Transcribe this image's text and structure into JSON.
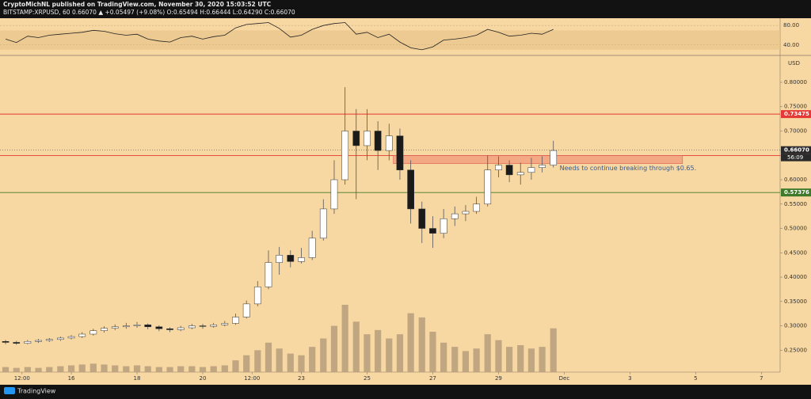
{
  "header": {
    "line1": "CryptoMichNL published on TradingView.com, November 30, 2020 15:03:52 UTC",
    "line2": "BITSTAMP:XRPUSD, 60  0.66070 ▲ +0.05497 (+9.08%) O:0.65494 H:0.66444 L:0.64290 C:0.66070"
  },
  "footer": {
    "brand": "TradingView"
  },
  "chart_data": {
    "type": "candlestick",
    "currency": "USD",
    "up_color": "#ffffff",
    "down_color": "#1a1a1a",
    "wick_color": "#555555",
    "volume_color": "#b39a7a",
    "xlim": [
      13.83,
      37.57
    ],
    "xticks": [
      {
        "value": 14.5,
        "label": "12:00"
      },
      16,
      18,
      20,
      {
        "value": 21.5,
        "label": "12:00"
      },
      23,
      25,
      27,
      29,
      {
        "value": 31,
        "label": "Dec"
      },
      {
        "value": 33,
        "label": "3"
      },
      {
        "value": 35,
        "label": "5"
      },
      {
        "value": 37,
        "label": "7"
      }
    ],
    "ylim": [
      0.205,
      0.852
    ],
    "yticks": [
      {
        "value": 0.25,
        "label": "0.25000"
      },
      {
        "value": 0.3,
        "label": "0.30000"
      },
      {
        "value": 0.35,
        "label": "0.35000"
      },
      {
        "value": 0.4,
        "label": "0.40000"
      },
      {
        "value": 0.45,
        "label": "0.45000"
      },
      {
        "value": 0.5,
        "label": "0.50000"
      },
      {
        "value": 0.55,
        "label": "0.55000"
      },
      {
        "value": 0.6,
        "label": "0.60000"
      },
      {
        "value": 0.65,
        "label": "0.65000"
      },
      {
        "value": 0.7,
        "label": "0.70000"
      },
      {
        "value": 0.75,
        "label": "0.75000"
      },
      {
        "value": 0.8,
        "label": "0.80000"
      }
    ],
    "x": [
      14,
      14.33,
      14.67,
      15,
      15.33,
      15.67,
      16,
      16.33,
      16.67,
      17,
      17.33,
      17.67,
      18,
      18.33,
      18.67,
      19,
      19.33,
      19.67,
      20,
      20.33,
      20.67,
      21,
      21.33,
      21.67,
      22,
      22.33,
      22.67,
      23,
      23.33,
      23.67,
      24,
      24.33,
      24.67,
      25,
      25.33,
      25.67,
      26,
      26.33,
      26.67,
      27,
      27.33,
      27.67,
      28,
      28.33,
      28.67,
      29,
      29.33,
      29.67,
      30,
      30.33,
      30.67
    ],
    "open": [
      0.268,
      0.266,
      0.264,
      0.268,
      0.27,
      0.272,
      0.275,
      0.278,
      0.283,
      0.29,
      0.295,
      0.298,
      0.3,
      0.302,
      0.298,
      0.294,
      0.292,
      0.296,
      0.3,
      0.299,
      0.302,
      0.305,
      0.318,
      0.345,
      0.38,
      0.43,
      0.445,
      0.432,
      0.44,
      0.48,
      0.54,
      0.6,
      0.7,
      0.67,
      0.7,
      0.66,
      0.69,
      0.62,
      0.54,
      0.5,
      0.49,
      0.52,
      0.53,
      0.535,
      0.55,
      0.62,
      0.63,
      0.61,
      0.615,
      0.625,
      0.63
    ],
    "high": [
      0.271,
      0.269,
      0.271,
      0.273,
      0.275,
      0.278,
      0.281,
      0.287,
      0.294,
      0.299,
      0.303,
      0.306,
      0.308,
      0.305,
      0.301,
      0.297,
      0.3,
      0.304,
      0.304,
      0.306,
      0.31,
      0.325,
      0.352,
      0.392,
      0.455,
      0.462,
      0.455,
      0.46,
      0.495,
      0.56,
      0.64,
      0.79,
      0.745,
      0.745,
      0.72,
      0.715,
      0.705,
      0.64,
      0.555,
      0.525,
      0.54,
      0.545,
      0.548,
      0.565,
      0.65,
      0.648,
      0.64,
      0.635,
      0.645,
      0.648,
      0.68
    ],
    "low": [
      0.262,
      0.261,
      0.262,
      0.265,
      0.267,
      0.269,
      0.272,
      0.275,
      0.28,
      0.286,
      0.291,
      0.294,
      0.296,
      0.293,
      0.289,
      0.287,
      0.289,
      0.293,
      0.294,
      0.296,
      0.299,
      0.302,
      0.315,
      0.34,
      0.375,
      0.405,
      0.42,
      0.428,
      0.435,
      0.475,
      0.53,
      0.59,
      0.56,
      0.64,
      0.62,
      0.64,
      0.6,
      0.51,
      0.47,
      0.46,
      0.48,
      0.505,
      0.515,
      0.53,
      0.545,
      0.605,
      0.595,
      0.59,
      0.6,
      0.615,
      0.625
    ],
    "close": [
      0.266,
      0.264,
      0.268,
      0.27,
      0.272,
      0.275,
      0.278,
      0.283,
      0.29,
      0.295,
      0.298,
      0.3,
      0.302,
      0.298,
      0.294,
      0.292,
      0.296,
      0.3,
      0.299,
      0.302,
      0.305,
      0.318,
      0.345,
      0.38,
      0.43,
      0.445,
      0.432,
      0.44,
      0.48,
      0.54,
      0.6,
      0.7,
      0.67,
      0.7,
      0.66,
      0.69,
      0.62,
      0.54,
      0.5,
      0.49,
      0.52,
      0.53,
      0.535,
      0.55,
      0.62,
      0.63,
      0.61,
      0.615,
      0.625,
      0.63,
      0.66
    ],
    "volume": [
      6,
      5,
      6,
      5,
      6,
      7,
      8,
      9,
      10,
      9,
      8,
      7,
      8,
      7,
      6,
      6,
      7,
      7,
      6,
      7,
      8,
      14,
      20,
      26,
      35,
      28,
      22,
      20,
      30,
      40,
      55,
      80,
      60,
      45,
      50,
      40,
      45,
      70,
      65,
      48,
      35,
      30,
      25,
      28,
      45,
      38,
      30,
      32,
      28,
      30,
      52
    ],
    "rsi": {
      "color": "#222222",
      "ylim": [
        21.7,
        93.3
      ],
      "band": [
        30,
        70
      ],
      "yticks": [
        {
          "value": 40,
          "label": "40.00"
        },
        {
          "value": 80,
          "label": "80.00"
        }
      ],
      "values": [
        52,
        45,
        58,
        55,
        60,
        62,
        64,
        66,
        70,
        68,
        63,
        60,
        62,
        52,
        48,
        46,
        55,
        58,
        52,
        57,
        60,
        75,
        82,
        84,
        86,
        74,
        56,
        60,
        72,
        80,
        84,
        86,
        62,
        66,
        55,
        62,
        46,
        34,
        30,
        36,
        50,
        52,
        55,
        60,
        72,
        66,
        58,
        60,
        64,
        62,
        72
      ]
    },
    "levels": [
      {
        "value": 0.73475,
        "label": "0.73475",
        "color": "#e53935"
      },
      {
        "value": 0.64968,
        "label": "0.64968",
        "color": "#e53935"
      },
      {
        "value": 0.57376,
        "label": "0.57376",
        "color": "#3f7a2b"
      }
    ],
    "last_price": {
      "value": 0.6607,
      "label": "0.66070",
      "countdown": "56:09"
    },
    "zone": {
      "x": [
        25.8,
        34.6
      ],
      "y": [
        0.633,
        0.6497
      ],
      "color": "#f4a582"
    },
    "annotation": "Needs to continue breaking through $0.65."
  }
}
